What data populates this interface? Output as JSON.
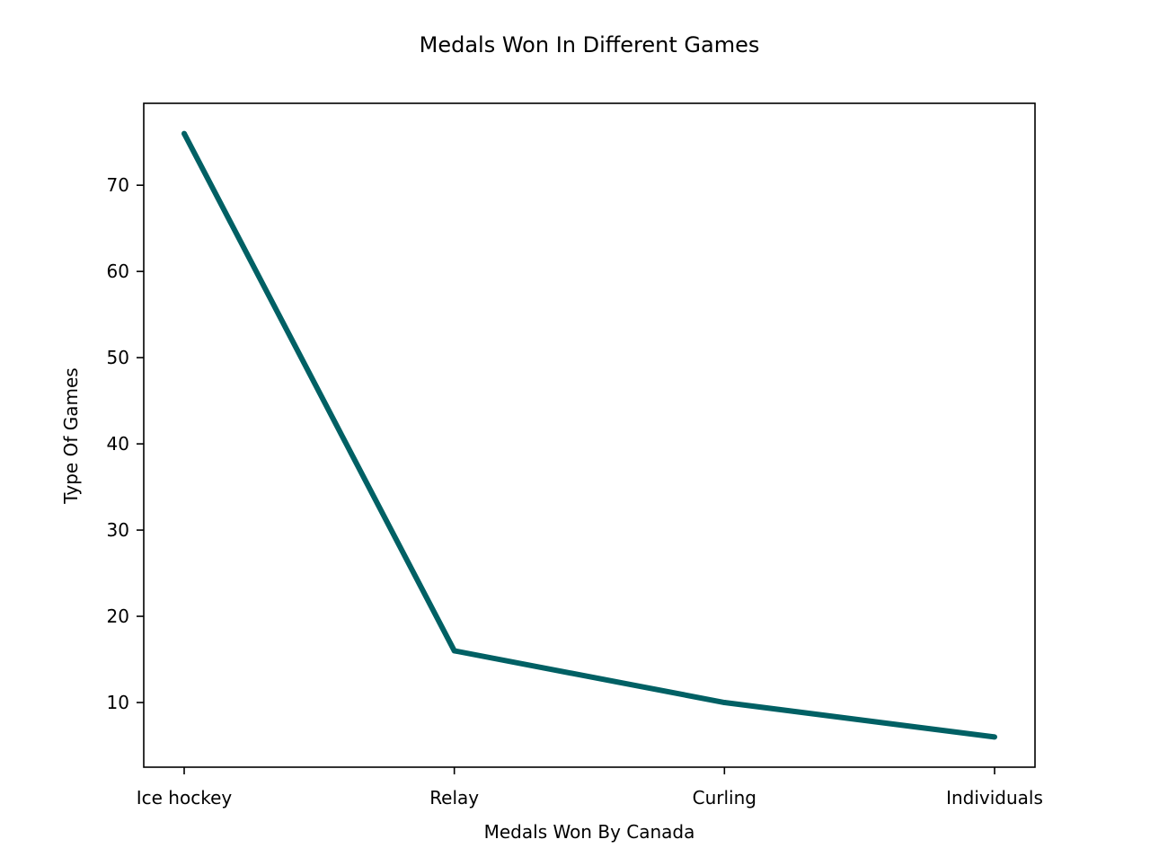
{
  "chart_data": {
    "type": "line",
    "title": "Medals Won In Different Games",
    "xlabel": "Medals Won By Canada",
    "ylabel": "Type Of Games",
    "categories": [
      "Ice hockey",
      "Relay",
      "Curling",
      "Individuals"
    ],
    "series": [
      {
        "values": [
          76,
          16,
          10,
          6
        ],
        "color": "#006064"
      }
    ],
    "ylim": [
      2.5,
      79.5
    ],
    "yticks": [
      10,
      20,
      30,
      40,
      50,
      60,
      70
    ],
    "grid": false,
    "legend": "none"
  }
}
